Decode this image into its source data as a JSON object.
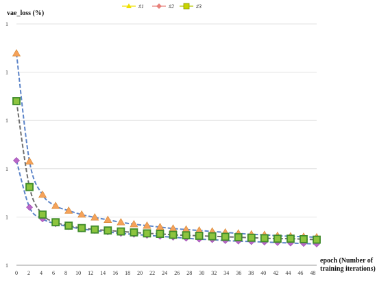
{
  "chart_data": {
    "type": "line",
    "title": "",
    "ylabel": "vae_loss (%)",
    "xlabel_line1": "epoch (Number of",
    "xlabel_line2": "training iterations)",
    "y_tick_labels": [
      "1",
      "1",
      "1",
      "1",
      "1",
      "1"
    ],
    "ylim": [
      0,
      5
    ],
    "grid": "horizontal",
    "legend_placement": "top-center",
    "x": [
      0,
      1,
      2,
      3,
      4,
      5,
      6,
      7,
      8,
      9,
      10,
      11,
      12,
      13,
      14,
      15,
      16,
      17,
      18,
      19,
      20,
      21,
      22,
      23
    ],
    "x_tick_labels": [
      "0",
      "2",
      "4",
      "6",
      "8",
      "10",
      "12",
      "14",
      "16",
      "18",
      "20",
      "22",
      "24",
      "26",
      "28",
      "30",
      "32",
      "34",
      "36",
      "38",
      "40",
      "42",
      "44",
      "46",
      "48"
    ],
    "series": [
      {
        "name": "#1",
        "marker": "triangle",
        "color": "#F5A25A",
        "line_color": "#5B83C8",
        "values": [
          4.39,
          2.15,
          1.46,
          1.23,
          1.13,
          1.05,
          0.99,
          0.94,
          0.89,
          0.85,
          0.82,
          0.79,
          0.76,
          0.74,
          0.72,
          0.7,
          0.68,
          0.66,
          0.64,
          0.63,
          0.61,
          0.6,
          0.59,
          0.58
        ]
      },
      {
        "name": "#2",
        "marker": "diamond",
        "color": "#B866C8",
        "line_color": "#5B83C8",
        "values": [
          2.17,
          1.2,
          0.96,
          0.86,
          0.8,
          0.75,
          0.72,
          0.69,
          0.66,
          0.64,
          0.62,
          0.6,
          0.58,
          0.56,
          0.54,
          0.53,
          0.51,
          0.5,
          0.49,
          0.48,
          0.47,
          0.46,
          0.45,
          0.44
        ]
      },
      {
        "name": "#3",
        "marker": "square",
        "color": "#8DC43E",
        "line_color": "#6E6E6E",
        "values": [
          3.4,
          1.62,
          1.05,
          0.89,
          0.82,
          0.77,
          0.74,
          0.72,
          0.7,
          0.68,
          0.66,
          0.65,
          0.63,
          0.62,
          0.61,
          0.6,
          0.59,
          0.58,
          0.57,
          0.56,
          0.55,
          0.55,
          0.54,
          0.53
        ]
      }
    ]
  }
}
